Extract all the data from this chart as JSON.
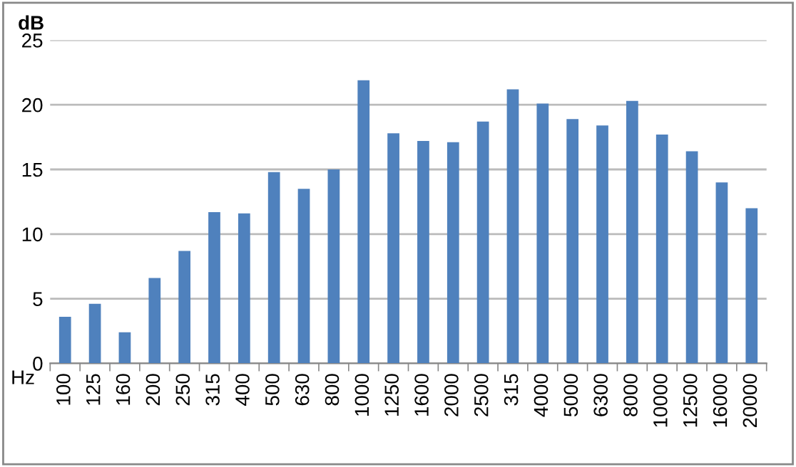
{
  "chart_data": {
    "type": "bar",
    "ylabel": "dB",
    "xlabel": "Hz",
    "categories": [
      "100",
      "125",
      "160",
      "200",
      "250",
      "315",
      "400",
      "500",
      "630",
      "800",
      "1000",
      "1250",
      "1600",
      "2000",
      "2500",
      "315",
      "4000",
      "5000",
      "6300",
      "8000",
      "10000",
      "12500",
      "16000",
      "20000"
    ],
    "values": [
      3.6,
      4.6,
      2.4,
      6.6,
      8.7,
      11.7,
      11.6,
      14.8,
      13.5,
      15.0,
      21.9,
      17.8,
      17.2,
      17.1,
      18.7,
      21.2,
      20.1,
      18.9,
      18.4,
      20.3,
      17.7,
      16.4,
      14.0,
      12.0
    ],
    "color": "#4f81bd",
    "ylim": [
      0,
      25
    ],
    "yticks": [
      0,
      5,
      10,
      15,
      20,
      25
    ],
    "grid": "y"
  }
}
